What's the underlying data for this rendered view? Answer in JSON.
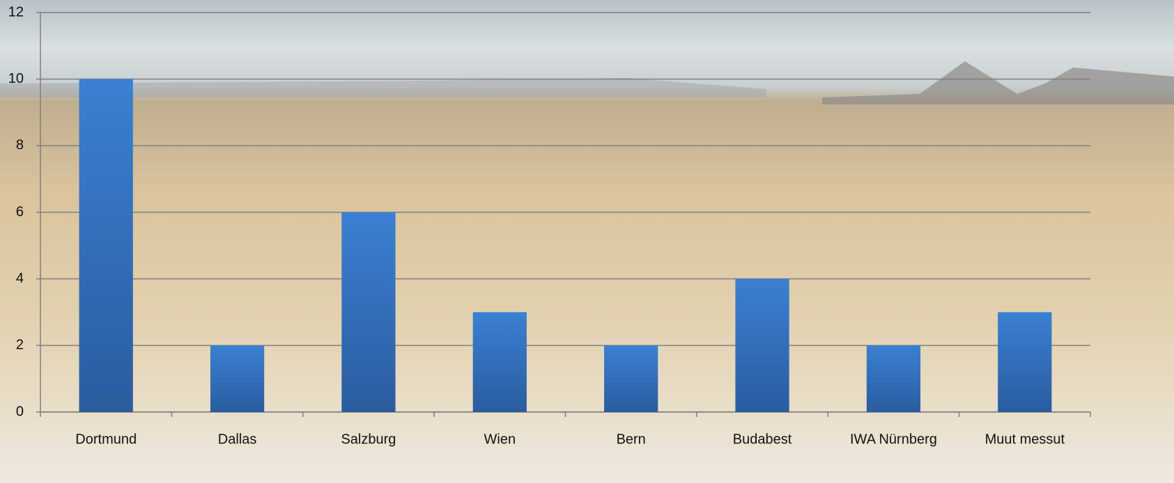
{
  "chart_data": {
    "type": "bar",
    "categories": [
      "Dortmund",
      "Dallas",
      "Salzburg",
      "Wien",
      "Bern",
      "Budabest",
      "IWA Nürnberg",
      "Muut messut"
    ],
    "values": [
      10,
      2,
      6,
      3,
      2,
      4,
      2,
      3
    ],
    "color": "#3a7fd0",
    "ylim": [
      0,
      12
    ],
    "yticks": [
      0,
      2,
      4,
      6,
      8,
      10,
      12
    ],
    "grid": true
  }
}
